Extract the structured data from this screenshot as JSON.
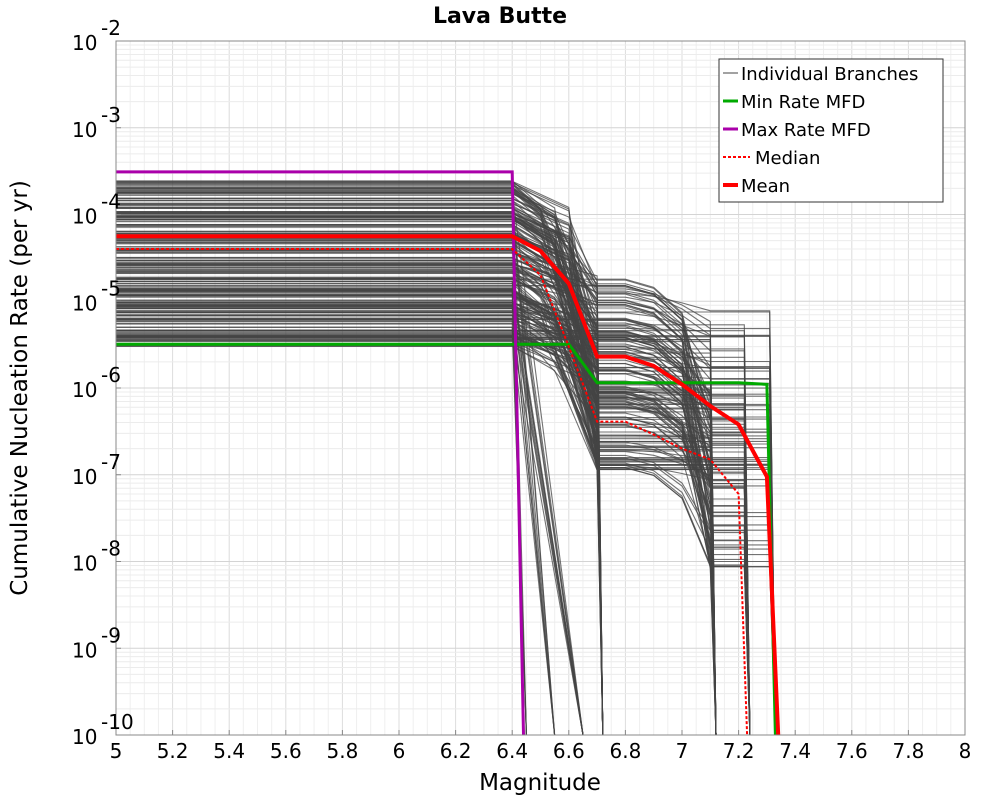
{
  "chart_data": {
    "type": "line",
    "title": "Lava Butte",
    "xlabel": "Magnitude",
    "ylabel": "Cumulative Nucleation Rate (per yr)",
    "xscale": "linear",
    "yscale": "log",
    "xlim": [
      5,
      8
    ],
    "ylim": [
      1e-10,
      0.01
    ],
    "grid": true,
    "legend_position": "top-right",
    "x_ticks": [
      {
        "value": 5,
        "label": "5"
      },
      {
        "value": 5.2,
        "label": "5.2"
      },
      {
        "value": 5.4,
        "label": "5.4"
      },
      {
        "value": 5.6,
        "label": "5.6"
      },
      {
        "value": 5.8,
        "label": "5.8"
      },
      {
        "value": 6,
        "label": "6"
      },
      {
        "value": 6.2,
        "label": "6.2"
      },
      {
        "value": 6.4,
        "label": "6.4"
      },
      {
        "value": 6.6,
        "label": "6.6"
      },
      {
        "value": 6.8,
        "label": "6.8"
      },
      {
        "value": 7,
        "label": "7"
      },
      {
        "value": 7.2,
        "label": "7.2"
      },
      {
        "value": 7.4,
        "label": "7.4"
      },
      {
        "value": 7.6,
        "label": "7.6"
      },
      {
        "value": 7.8,
        "label": "7.8"
      },
      {
        "value": 8,
        "label": "8"
      }
    ],
    "y_ticks": [
      {
        "exponent": -2,
        "base": "10",
        "exp_label": "-2"
      },
      {
        "exponent": -3,
        "base": "10",
        "exp_label": "-3"
      },
      {
        "exponent": -4,
        "base": "10",
        "exp_label": "-4"
      },
      {
        "exponent": -5,
        "base": "10",
        "exp_label": "-5"
      },
      {
        "exponent": -6,
        "base": "10",
        "exp_label": "-6"
      },
      {
        "exponent": -7,
        "base": "10",
        "exp_label": "-7"
      },
      {
        "exponent": -8,
        "base": "10",
        "exp_label": "-8"
      },
      {
        "exponent": -9,
        "base": "10",
        "exp_label": "-9"
      },
      {
        "exponent": -10,
        "base": "10",
        "exp_label": "-10"
      }
    ],
    "series": [
      {
        "name": "Min Rate MFD",
        "color": "#00aa00",
        "style": "solid",
        "x": [
          5.0,
          6.4,
          6.5,
          6.6,
          6.7,
          6.8,
          6.9,
          7.0,
          7.1,
          7.2,
          7.3,
          7.33
        ],
        "y": [
          3.2e-06,
          3.2e-06,
          3.2e-06,
          3.2e-06,
          1.15e-06,
          1.15e-06,
          1.15e-06,
          1.15e-06,
          1.15e-06,
          1.15e-06,
          1.1e-06,
          1e-10
        ]
      },
      {
        "name": "Max Rate MFD",
        "color": "#aa00aa",
        "style": "solid",
        "x": [
          5.0,
          6.4,
          6.44
        ],
        "y": [
          0.00031,
          0.00031,
          1e-10
        ]
      },
      {
        "name": "Median",
        "color": "#ff0000",
        "style": "dotted",
        "x": [
          5.0,
          6.4,
          6.5,
          6.6,
          6.7,
          6.8,
          6.9,
          7.0,
          7.1,
          7.2,
          7.23
        ],
        "y": [
          4e-05,
          4e-05,
          2e-05,
          3e-06,
          4.1e-07,
          4.1e-07,
          2.9e-07,
          2e-07,
          1.5e-07,
          6e-08,
          1e-10
        ]
      },
      {
        "name": "Mean",
        "color": "#ff0000",
        "style": "solid",
        "x": [
          5.0,
          6.4,
          6.5,
          6.6,
          6.7,
          6.8,
          6.9,
          7.0,
          7.1,
          7.2,
          7.3,
          7.34
        ],
        "y": [
          5.6e-05,
          5.6e-05,
          3.8e-05,
          1.6e-05,
          2.3e-06,
          2.3e-06,
          1.8e-06,
          1.1e-06,
          6.2e-07,
          3.8e-07,
          9.5e-08,
          1e-10
        ]
      }
    ],
    "individual_branches": {
      "name": "Individual Branches",
      "color": "#444444",
      "count": 240,
      "x_start": 5.0,
      "plateau_end_x": 6.4,
      "plateau_y_range": [
        3e-06,
        0.00025
      ],
      "drop_to_zero_x": [
        6.45,
        6.55,
        6.65,
        7.12,
        7.24,
        7.33
      ],
      "second_plateau_y_range": [
        1e-08,
        4e-05
      ],
      "third_plateau_y_range": [
        1e-08,
        1.2e-05
      ]
    }
  },
  "legend": {
    "items": [
      {
        "label": "Individual Branches",
        "color": "#444444",
        "style": "thin"
      },
      {
        "label": "Min Rate MFD",
        "color": "#00aa00",
        "style": "solid"
      },
      {
        "label": "Max Rate MFD",
        "color": "#aa00aa",
        "style": "solid"
      },
      {
        "label": "Median",
        "color": "#ff0000",
        "style": "dotted"
      },
      {
        "label": "Mean",
        "color": "#ff0000",
        "style": "thick"
      }
    ]
  }
}
